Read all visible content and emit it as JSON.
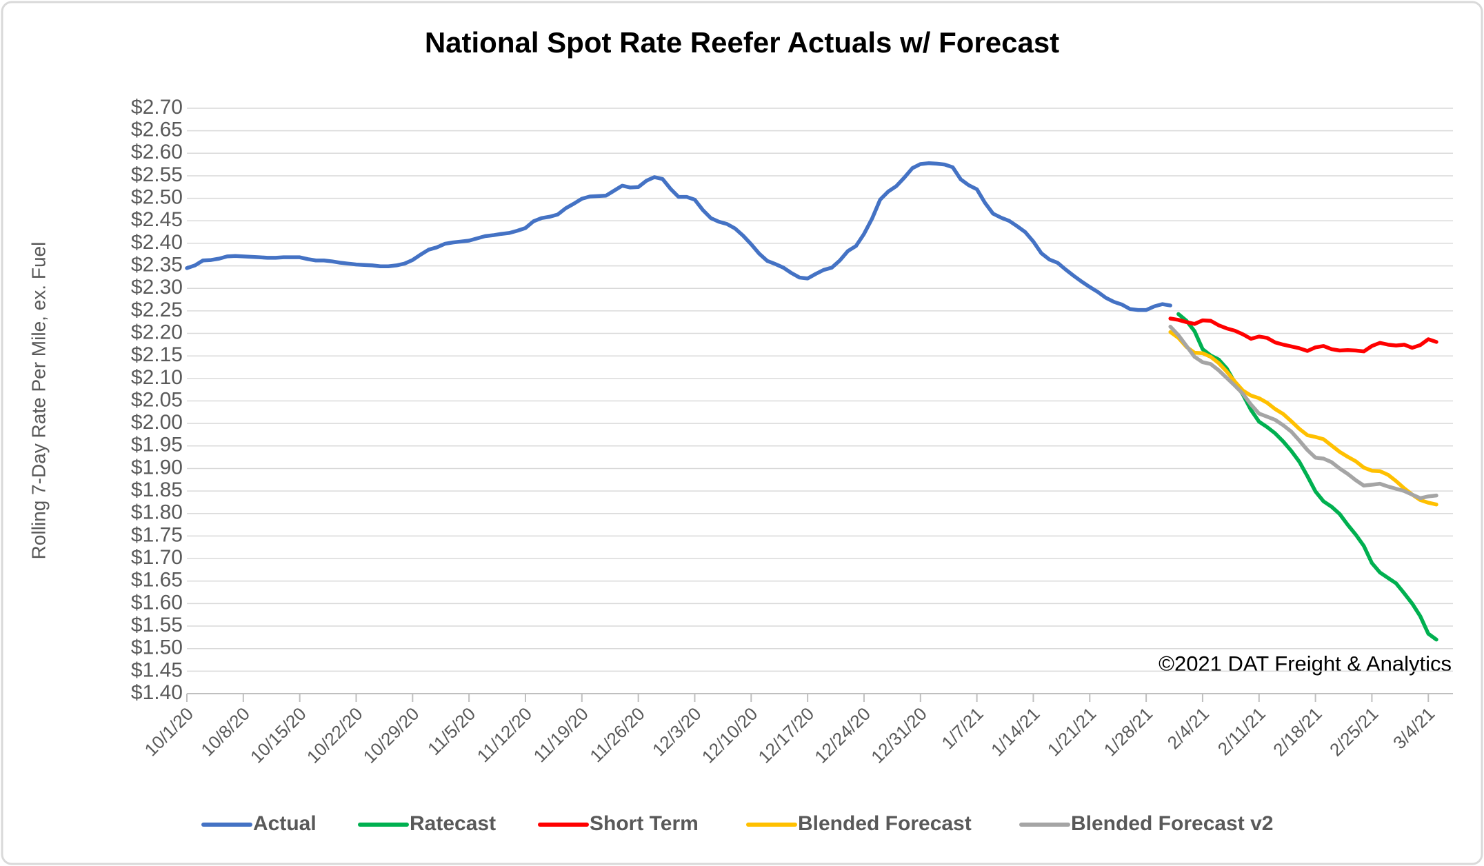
{
  "chart_data": {
    "type": "line",
    "title": "National Spot Rate Reefer Actuals w/ Forecast",
    "y_label": "Rolling 7-Day Rate Per Mile, ex. Fuel",
    "annotation": "©2021 DAT Freight & Analytics",
    "grid": true,
    "legend": "bottom",
    "categories": [
      "10/1/20",
      null,
      null,
      null,
      null,
      null,
      null,
      "10/8/20",
      null,
      null,
      null,
      null,
      null,
      null,
      "10/15/20",
      null,
      null,
      null,
      null,
      null,
      null,
      "10/22/20",
      null,
      null,
      null,
      null,
      null,
      null,
      "10/29/20",
      null,
      null,
      null,
      null,
      null,
      null,
      "11/5/20",
      null,
      null,
      null,
      null,
      null,
      null,
      "11/12/20",
      null,
      null,
      null,
      null,
      null,
      null,
      "11/19/20",
      null,
      null,
      null,
      null,
      null,
      null,
      "11/26/20",
      null,
      null,
      null,
      null,
      null,
      null,
      "12/3/20",
      null,
      null,
      null,
      null,
      null,
      null,
      "12/10/20",
      null,
      null,
      null,
      null,
      null,
      null,
      "12/17/20",
      null,
      null,
      null,
      null,
      null,
      null,
      "12/24/20",
      null,
      null,
      null,
      null,
      null,
      null,
      "12/31/20",
      null,
      null,
      null,
      null,
      null,
      null,
      "1/7/21",
      null,
      null,
      null,
      null,
      null,
      null,
      "1/14/21",
      null,
      null,
      null,
      null,
      null,
      null,
      "1/21/21",
      null,
      null,
      null,
      null,
      null,
      null,
      "1/28/21",
      null,
      null,
      null,
      null,
      null,
      null,
      "2/4/21",
      null,
      null,
      null,
      null,
      null,
      null,
      "2/11/21",
      null,
      null,
      null,
      null,
      null,
      null,
      "2/18/21",
      null,
      null,
      null,
      null,
      null,
      null,
      "2/25/21",
      null,
      null,
      null,
      null,
      null,
      null,
      "3/4/21",
      null
    ],
    "ylim": [
      1.4,
      2.7
    ],
    "yticks": [
      {
        "value": 1.4,
        "label": "$1.40"
      },
      {
        "value": 1.45,
        "label": "$1.45"
      },
      {
        "value": 1.5,
        "label": "$1.50"
      },
      {
        "value": 1.55,
        "label": "$1.55"
      },
      {
        "value": 1.6,
        "label": "$1.60"
      },
      {
        "value": 1.65,
        "label": "$1.65"
      },
      {
        "value": 1.7,
        "label": "$1.70"
      },
      {
        "value": 1.75,
        "label": "$1.75"
      },
      {
        "value": 1.8,
        "label": "$1.80"
      },
      {
        "value": 1.85,
        "label": "$1.85"
      },
      {
        "value": 1.9,
        "label": "$1.90"
      },
      {
        "value": 1.95,
        "label": "$1.95"
      },
      {
        "value": 2.0,
        "label": "$2.00"
      },
      {
        "value": 2.05,
        "label": "$2.05"
      },
      {
        "value": 2.1,
        "label": "$2.10"
      },
      {
        "value": 2.15,
        "label": "$2.15"
      },
      {
        "value": 2.2,
        "label": "$2.20"
      },
      {
        "value": 2.25,
        "label": "$2.25"
      },
      {
        "value": 2.3,
        "label": "$2.30"
      },
      {
        "value": 2.35,
        "label": "$2.35"
      },
      {
        "value": 2.4,
        "label": "$2.40"
      },
      {
        "value": 2.45,
        "label": "$2.45"
      },
      {
        "value": 2.5,
        "label": "$2.50"
      },
      {
        "value": 2.55,
        "label": "$2.55"
      },
      {
        "value": 2.6,
        "label": "$2.60"
      },
      {
        "value": 2.65,
        "label": "$2.65"
      },
      {
        "value": 2.7,
        "label": "$2.70"
      }
    ],
    "series": [
      {
        "name": "Actual",
        "color": "#4472c4",
        "values": [
          2.345,
          2.351,
          2.362,
          2.363,
          2.366,
          2.371,
          2.372,
          2.371,
          2.37,
          2.369,
          2.368,
          2.368,
          2.369,
          2.369,
          2.369,
          2.365,
          2.362,
          2.362,
          2.36,
          2.357,
          2.355,
          2.353,
          2.352,
          2.351,
          2.349,
          2.349,
          2.351,
          2.355,
          2.363,
          2.375,
          2.386,
          2.391,
          2.399,
          2.402,
          2.404,
          2.406,
          2.411,
          2.416,
          2.418,
          2.421,
          2.423,
          2.428,
          2.434,
          2.449,
          2.456,
          2.459,
          2.464,
          2.478,
          2.488,
          2.499,
          2.504,
          2.505,
          2.506,
          2.517,
          2.528,
          2.524,
          2.525,
          2.539,
          2.547,
          2.543,
          2.521,
          2.503,
          2.503,
          2.497,
          2.474,
          2.456,
          2.448,
          2.443,
          2.433,
          2.417,
          2.398,
          2.377,
          2.361,
          2.354,
          2.346,
          2.334,
          2.324,
          2.322,
          2.332,
          2.341,
          2.346,
          2.362,
          2.383,
          2.394,
          2.421,
          2.455,
          2.497,
          2.515,
          2.527,
          2.546,
          2.567,
          2.576,
          2.578,
          2.577,
          2.575,
          2.569,
          2.542,
          2.529,
          2.52,
          2.49,
          2.466,
          2.457,
          2.45,
          2.438,
          2.425,
          2.404,
          2.378,
          2.364,
          2.357,
          2.342,
          2.328,
          2.315,
          2.303,
          2.292,
          2.279,
          2.27,
          2.264,
          2.254,
          2.252,
          2.252,
          2.26,
          2.265,
          2.262,
          null,
          null,
          null,
          null,
          null,
          null,
          null,
          null,
          null,
          null,
          null,
          null,
          null,
          null,
          null,
          null,
          null,
          null,
          null,
          null,
          null,
          null,
          null,
          null,
          null,
          null,
          null,
          null,
          null,
          null,
          null,
          null,
          null
        ]
      },
      {
        "name": "Ratecast",
        "color": "#00b050",
        "values": [
          null,
          null,
          null,
          null,
          null,
          null,
          null,
          null,
          null,
          null,
          null,
          null,
          null,
          null,
          null,
          null,
          null,
          null,
          null,
          null,
          null,
          null,
          null,
          null,
          null,
          null,
          null,
          null,
          null,
          null,
          null,
          null,
          null,
          null,
          null,
          null,
          null,
          null,
          null,
          null,
          null,
          null,
          null,
          null,
          null,
          null,
          null,
          null,
          null,
          null,
          null,
          null,
          null,
          null,
          null,
          null,
          null,
          null,
          null,
          null,
          null,
          null,
          null,
          null,
          null,
          null,
          null,
          null,
          null,
          null,
          null,
          null,
          null,
          null,
          null,
          null,
          null,
          null,
          null,
          null,
          null,
          null,
          null,
          null,
          null,
          null,
          null,
          null,
          null,
          null,
          null,
          null,
          null,
          null,
          null,
          null,
          null,
          null,
          null,
          null,
          null,
          null,
          null,
          null,
          null,
          null,
          null,
          null,
          null,
          null,
          null,
          null,
          null,
          null,
          null,
          null,
          null,
          null,
          null,
          null,
          null,
          null,
          null,
          2.243,
          2.228,
          2.205,
          2.165,
          2.151,
          2.142,
          2.122,
          2.091,
          2.064,
          2.03,
          2.004,
          1.992,
          1.978,
          1.96,
          1.939,
          1.915,
          1.883,
          1.849,
          1.827,
          1.815,
          1.799,
          1.775,
          1.753,
          1.728,
          1.69,
          1.669,
          1.657,
          1.645,
          1.623,
          1.6,
          1.572,
          1.533,
          1.52
        ]
      },
      {
        "name": "Short Term",
        "color": "#ff0000",
        "values": [
          null,
          null,
          null,
          null,
          null,
          null,
          null,
          null,
          null,
          null,
          null,
          null,
          null,
          null,
          null,
          null,
          null,
          null,
          null,
          null,
          null,
          null,
          null,
          null,
          null,
          null,
          null,
          null,
          null,
          null,
          null,
          null,
          null,
          null,
          null,
          null,
          null,
          null,
          null,
          null,
          null,
          null,
          null,
          null,
          null,
          null,
          null,
          null,
          null,
          null,
          null,
          null,
          null,
          null,
          null,
          null,
          null,
          null,
          null,
          null,
          null,
          null,
          null,
          null,
          null,
          null,
          null,
          null,
          null,
          null,
          null,
          null,
          null,
          null,
          null,
          null,
          null,
          null,
          null,
          null,
          null,
          null,
          null,
          null,
          null,
          null,
          null,
          null,
          null,
          null,
          null,
          null,
          null,
          null,
          null,
          null,
          null,
          null,
          null,
          null,
          null,
          null,
          null,
          null,
          null,
          null,
          null,
          null,
          null,
          null,
          null,
          null,
          null,
          null,
          null,
          null,
          null,
          null,
          null,
          null,
          null,
          null,
          2.233,
          2.23,
          2.225,
          2.221,
          2.229,
          2.228,
          2.218,
          2.211,
          2.206,
          2.198,
          2.188,
          2.193,
          2.19,
          2.18,
          2.175,
          2.171,
          2.167,
          2.161,
          2.169,
          2.172,
          2.165,
          2.162,
          2.163,
          2.162,
          2.16,
          2.172,
          2.179,
          2.175,
          2.173,
          2.175,
          2.168,
          2.174,
          2.187,
          2.181
        ]
      },
      {
        "name": "Blended Forecast",
        "color": "#ffc000",
        "values": [
          null,
          null,
          null,
          null,
          null,
          null,
          null,
          null,
          null,
          null,
          null,
          null,
          null,
          null,
          null,
          null,
          null,
          null,
          null,
          null,
          null,
          null,
          null,
          null,
          null,
          null,
          null,
          null,
          null,
          null,
          null,
          null,
          null,
          null,
          null,
          null,
          null,
          null,
          null,
          null,
          null,
          null,
          null,
          null,
          null,
          null,
          null,
          null,
          null,
          null,
          null,
          null,
          null,
          null,
          null,
          null,
          null,
          null,
          null,
          null,
          null,
          null,
          null,
          null,
          null,
          null,
          null,
          null,
          null,
          null,
          null,
          null,
          null,
          null,
          null,
          null,
          null,
          null,
          null,
          null,
          null,
          null,
          null,
          null,
          null,
          null,
          null,
          null,
          null,
          null,
          null,
          null,
          null,
          null,
          null,
          null,
          null,
          null,
          null,
          null,
          null,
          null,
          null,
          null,
          null,
          null,
          null,
          null,
          null,
          null,
          null,
          null,
          null,
          null,
          null,
          null,
          null,
          null,
          null,
          null,
          null,
          null,
          2.203,
          2.19,
          2.17,
          2.157,
          2.156,
          2.148,
          2.134,
          2.115,
          2.093,
          2.073,
          2.062,
          2.056,
          2.046,
          2.032,
          2.021,
          2.005,
          1.988,
          1.974,
          1.97,
          1.965,
          1.951,
          1.937,
          1.926,
          1.916,
          1.902,
          1.895,
          1.894,
          1.886,
          1.872,
          1.856,
          1.842,
          1.83,
          1.824,
          1.82
        ]
      },
      {
        "name": "Blended Forecast v2",
        "color": "#a5a5a5",
        "values": [
          null,
          null,
          null,
          null,
          null,
          null,
          null,
          null,
          null,
          null,
          null,
          null,
          null,
          null,
          null,
          null,
          null,
          null,
          null,
          null,
          null,
          null,
          null,
          null,
          null,
          null,
          null,
          null,
          null,
          null,
          null,
          null,
          null,
          null,
          null,
          null,
          null,
          null,
          null,
          null,
          null,
          null,
          null,
          null,
          null,
          null,
          null,
          null,
          null,
          null,
          null,
          null,
          null,
          null,
          null,
          null,
          null,
          null,
          null,
          null,
          null,
          null,
          null,
          null,
          null,
          null,
          null,
          null,
          null,
          null,
          null,
          null,
          null,
          null,
          null,
          null,
          null,
          null,
          null,
          null,
          null,
          null,
          null,
          null,
          null,
          null,
          null,
          null,
          null,
          null,
          null,
          null,
          null,
          null,
          null,
          null,
          null,
          null,
          null,
          null,
          null,
          null,
          null,
          null,
          null,
          null,
          null,
          null,
          null,
          null,
          null,
          null,
          null,
          null,
          null,
          null,
          null,
          null,
          null,
          null,
          null,
          null,
          2.215,
          2.196,
          2.172,
          2.148,
          2.136,
          2.132,
          2.118,
          2.101,
          2.084,
          2.066,
          2.042,
          2.022,
          2.015,
          2.008,
          1.996,
          1.982,
          1.962,
          1.941,
          1.924,
          1.922,
          1.914,
          1.9,
          1.888,
          1.874,
          1.862,
          1.864,
          1.866,
          1.86,
          1.855,
          1.85,
          1.842,
          1.834,
          1.838,
          1.84
        ]
      }
    ]
  }
}
